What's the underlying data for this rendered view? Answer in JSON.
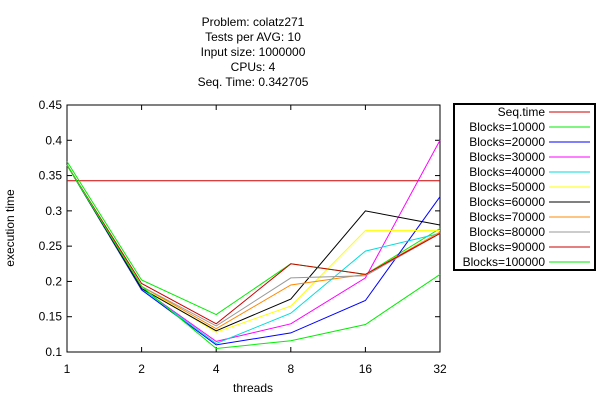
{
  "title_lines": [
    "Problem: colatz271",
    "Tests per AVG: 10",
    "Input size: 1000000",
    "CPUs: 4",
    "Seq. Time: 0.342705"
  ],
  "chart_data": {
    "type": "line",
    "title": "Problem: colatz271\nTests per AVG: 10\nInput size: 1000000\nCPUs: 4\nSeq. Time: 0.342705",
    "xlabel": "threads",
    "ylabel": "execution time",
    "x_scale": "log2",
    "x": [
      1,
      2,
      4,
      8,
      16,
      32
    ],
    "x_tick_labels": [
      "1",
      "2",
      "4",
      "8",
      "16",
      "32"
    ],
    "y_ticks": [
      0.1,
      0.15,
      0.2,
      0.25,
      0.3,
      0.35,
      0.4,
      0.45
    ],
    "y_tick_labels": [
      "0.1",
      "0.15",
      "0.2",
      "0.25",
      "0.3",
      "0.35",
      "0.4",
      "0.45"
    ],
    "ylim": [
      0.1,
      0.45
    ],
    "grid": false,
    "legend_position": "right",
    "series": [
      {
        "name": "Seq.time",
        "color": "#cc0000",
        "values": [
          0.3427,
          0.3427,
          0.3427,
          0.3427,
          0.3427,
          0.3427
        ]
      },
      {
        "name": "Blocks=10000",
        "color": "#00ee00",
        "values": [
          0.37,
          0.202,
          0.153,
          0.225,
          0.21,
          0.275
        ]
      },
      {
        "name": "Blocks=20000",
        "color": "#0000ff",
        "values": [
          0.365,
          0.188,
          0.11,
          0.127,
          0.173,
          0.32
        ]
      },
      {
        "name": "Blocks=30000",
        "color": "#ff00ff",
        "values": [
          0.365,
          0.19,
          0.115,
          0.14,
          0.205,
          0.4
        ]
      },
      {
        "name": "Blocks=40000",
        "color": "#00dddd",
        "values": [
          0.365,
          0.19,
          0.112,
          0.155,
          0.243,
          0.268
        ]
      },
      {
        "name": "Blocks=50000",
        "color": "#ffff00",
        "values": [
          0.365,
          0.193,
          0.128,
          0.165,
          0.272,
          0.272
        ]
      },
      {
        "name": "Blocks=60000",
        "color": "#000000",
        "values": [
          0.365,
          0.19,
          0.13,
          0.175,
          0.3,
          0.28
        ]
      },
      {
        "name": "Blocks=70000",
        "color": "#ff8800",
        "values": [
          0.365,
          0.193,
          0.133,
          0.195,
          0.21,
          0.27
        ]
      },
      {
        "name": "Blocks=80000",
        "color": "#999999",
        "values": [
          0.365,
          0.193,
          0.137,
          0.205,
          0.208,
          0.268
        ]
      },
      {
        "name": "Blocks=90000",
        "color": "#cc0000",
        "values": [
          0.365,
          0.197,
          0.14,
          0.225,
          0.21,
          0.268
        ]
      },
      {
        "name": "Blocks=100000",
        "color": "#00ee00",
        "values": [
          0.365,
          0.193,
          0.105,
          0.116,
          0.139,
          0.21
        ]
      }
    ]
  }
}
